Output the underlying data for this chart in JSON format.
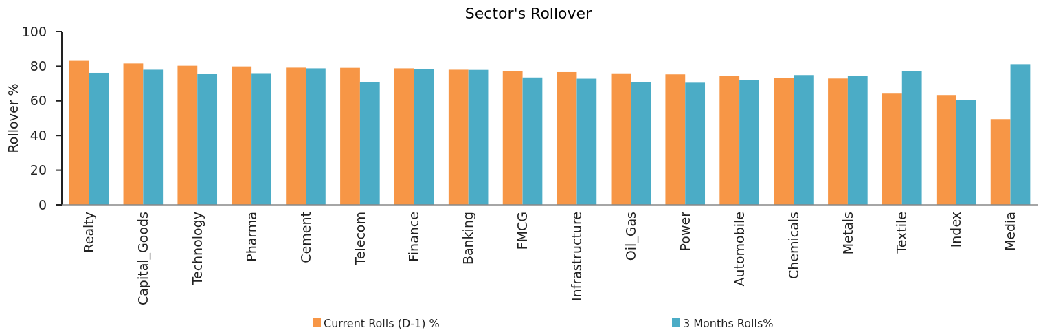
{
  "chart_data": {
    "type": "bar",
    "title": "Sector's Rollover",
    "ylabel": "Rollover %",
    "categories": [
      "Realty",
      "Capital_Goods",
      "Technology",
      "Pharma",
      "Cement",
      "Telecom",
      "Finance",
      "Banking",
      "FMCG",
      "Infrastructure",
      "Oil_Gas",
      "Power",
      "Automobile",
      "Chemicals",
      "Metals",
      "Textile",
      "Index",
      "Media"
    ],
    "series": [
      {
        "name": "Current  Rolls (D-1) %",
        "color": "#f79646",
        "values": [
          83.1,
          81.6,
          80.3,
          79.9,
          79.2,
          79.1,
          78.8,
          78.0,
          77.2,
          76.6,
          75.9,
          75.3,
          74.3,
          73.1,
          72.9,
          64.2,
          63.4,
          49.5
        ]
      },
      {
        "name": "3 Months Rolls%",
        "color": "#4bacc6",
        "values": [
          76.2,
          78.0,
          75.5,
          76.0,
          78.8,
          70.8,
          78.3,
          77.9,
          73.5,
          72.8,
          71.0,
          70.5,
          72.1,
          74.9,
          74.3,
          77.0,
          60.7,
          81.2
        ]
      }
    ],
    "ylim": [
      0,
      100
    ],
    "yticks": [
      0,
      20,
      40,
      60,
      80,
      100
    ],
    "legend": "bottom"
  }
}
